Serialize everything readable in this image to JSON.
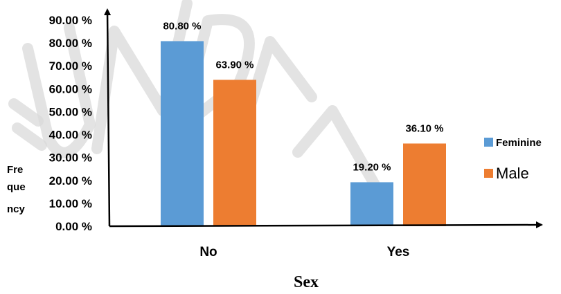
{
  "chart_data": {
    "type": "bar",
    "categories": [
      "No",
      "Yes"
    ],
    "series": [
      {
        "name": "Feminine",
        "values": [
          80.8,
          19.2
        ],
        "labels": [
          "80.80 %",
          "19.20 %"
        ],
        "color": "#5b9bd5"
      },
      {
        "name": "Male",
        "values": [
          63.9,
          36.1
        ],
        "labels": [
          "63.90 %",
          "36.10 %"
        ],
        "color": "#ed7d31"
      }
    ],
    "ylim": [
      0,
      90
    ],
    "yticks": [
      {
        "value": 0,
        "label": "0.00 %"
      },
      {
        "value": 10,
        "label": "10.00 %"
      },
      {
        "value": 20,
        "label": "20.00 %"
      },
      {
        "value": 30,
        "label": "30.00 %"
      },
      {
        "value": 40,
        "label": "40.00 %"
      },
      {
        "value": 50,
        "label": "50.00 %"
      },
      {
        "value": 60,
        "label": "60.00 %"
      },
      {
        "value": 70,
        "label": "70.00 %"
      },
      {
        "value": 80,
        "label": "80.00 %"
      },
      {
        "value": 90,
        "label": "90.00 %"
      }
    ],
    "ylabel_lines": [
      "Fre",
      "que",
      "ncy"
    ],
    "xlabel": "Sex",
    "title": "",
    "grid": false,
    "legend_position": "right"
  },
  "watermark": {
    "text": "UNDER REVIEW",
    "color": "#d9d9d9"
  }
}
